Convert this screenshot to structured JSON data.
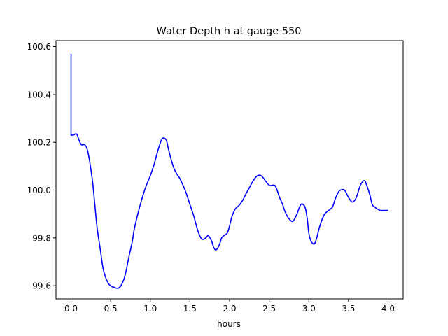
{
  "chart_data": {
    "type": "line",
    "title": "Water Depth h at gauge 550",
    "xlabel": "hours",
    "ylabel": "",
    "xlim": [
      -0.19,
      4.19
    ],
    "ylim": [
      99.545,
      100.625
    ],
    "xticks": [
      0.0,
      0.5,
      1.0,
      1.5,
      2.0,
      2.5,
      3.0,
      3.5,
      4.0
    ],
    "xtick_labels": [
      "0.0",
      "0.5",
      "1.0",
      "1.5",
      "2.0",
      "2.5",
      "3.0",
      "3.5",
      "4.0"
    ],
    "yticks": [
      99.6,
      99.8,
      100.0,
      100.2,
      100.4,
      100.6
    ],
    "ytick_labels": [
      "99.6",
      "99.8",
      "100.0",
      "100.2",
      "100.4",
      "100.6"
    ],
    "grid": false,
    "series": [
      {
        "color": "#0000ff",
        "x": [
          0.0,
          0.0,
          0.0,
          0.03,
          0.07,
          0.1,
          0.13,
          0.17,
          0.2,
          0.23,
          0.27,
          0.3,
          0.33,
          0.37,
          0.4,
          0.43,
          0.47,
          0.5,
          0.53,
          0.57,
          0.6,
          0.63,
          0.67,
          0.7,
          0.73,
          0.77,
          0.8,
          0.85,
          0.9,
          0.95,
          1.0,
          1.05,
          1.1,
          1.15,
          1.2,
          1.23,
          1.27,
          1.3,
          1.33,
          1.37,
          1.4,
          1.45,
          1.5,
          1.55,
          1.6,
          1.65,
          1.7,
          1.73,
          1.77,
          1.8,
          1.83,
          1.87,
          1.9,
          1.93,
          1.97,
          2.0,
          2.03,
          2.07,
          2.1,
          2.13,
          2.17,
          2.2,
          2.25,
          2.3,
          2.35,
          2.4,
          2.45,
          2.5,
          2.53,
          2.57,
          2.6,
          2.63,
          2.67,
          2.7,
          2.75,
          2.8,
          2.85,
          2.9,
          2.95,
          2.98,
          3.0,
          3.03,
          3.07,
          3.1,
          3.13,
          3.17,
          3.2,
          3.23,
          3.27,
          3.3,
          3.33,
          3.37,
          3.4,
          3.45,
          3.5,
          3.55,
          3.6,
          3.65,
          3.7,
          3.73,
          3.77,
          3.8,
          3.83,
          3.87,
          3.9,
          3.93,
          3.97,
          4.0
        ],
        "y": [
          100.57,
          100.32,
          100.23,
          100.23,
          100.235,
          100.21,
          100.19,
          100.19,
          100.175,
          100.13,
          100.04,
          99.94,
          99.84,
          99.75,
          99.68,
          99.64,
          99.61,
          99.6,
          99.595,
          99.59,
          99.59,
          99.6,
          99.63,
          99.67,
          99.72,
          99.78,
          99.84,
          99.91,
          99.97,
          100.02,
          100.06,
          100.11,
          100.17,
          100.215,
          100.21,
          100.17,
          100.12,
          100.09,
          100.07,
          100.05,
          100.03,
          99.99,
          99.94,
          99.89,
          99.83,
          99.795,
          99.8,
          99.81,
          99.79,
          99.76,
          99.75,
          99.77,
          99.8,
          99.81,
          99.82,
          99.85,
          99.89,
          99.92,
          99.93,
          99.94,
          99.96,
          99.98,
          100.01,
          100.04,
          100.06,
          100.06,
          100.04,
          100.02,
          100.02,
          100.02,
          100.0,
          99.97,
          99.94,
          99.91,
          99.88,
          99.87,
          99.9,
          99.94,
          99.93,
          99.88,
          99.82,
          99.785,
          99.775,
          99.8,
          99.84,
          99.88,
          99.9,
          99.91,
          99.92,
          99.93,
          99.96,
          99.99,
          100.0,
          100.0,
          99.97,
          99.95,
          99.97,
          100.02,
          100.04,
          100.02,
          99.98,
          99.94,
          99.93,
          99.92,
          99.915,
          99.915,
          99.915,
          99.915
        ]
      }
    ]
  }
}
